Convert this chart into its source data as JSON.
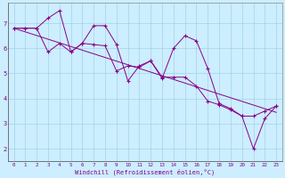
{
  "background_color": "#cceeff",
  "line_color": "#880088",
  "xlim": [
    -0.5,
    23.5
  ],
  "ylim": [
    1.5,
    7.8
  ],
  "yticks": [
    2,
    3,
    4,
    5,
    6,
    7
  ],
  "xticks": [
    0,
    1,
    2,
    3,
    4,
    5,
    6,
    7,
    8,
    9,
    10,
    11,
    12,
    13,
    14,
    15,
    16,
    17,
    18,
    19,
    20,
    21,
    22,
    23
  ],
  "xlabel": "Windchill (Refroidissement éolien,°C)",
  "series1": [
    6.8,
    6.8,
    6.8,
    7.2,
    7.5,
    5.85,
    6.2,
    6.9,
    6.9,
    6.15,
    4.7,
    5.3,
    5.5,
    4.8,
    6.0,
    6.5,
    6.3,
    5.2,
    3.8,
    3.6,
    3.3,
    2.0,
    3.2,
    3.7
  ],
  "series2": [
    6.8,
    6.8,
    6.8,
    5.85,
    6.2,
    5.85,
    6.2,
    6.15,
    6.1,
    5.1,
    5.3,
    5.25,
    5.5,
    4.85,
    4.85,
    4.85,
    4.5,
    3.9,
    3.75,
    3.55,
    3.3,
    3.3,
    3.5,
    3.7
  ],
  "trend_y_start": 6.8,
  "trend_y_end": 3.45
}
